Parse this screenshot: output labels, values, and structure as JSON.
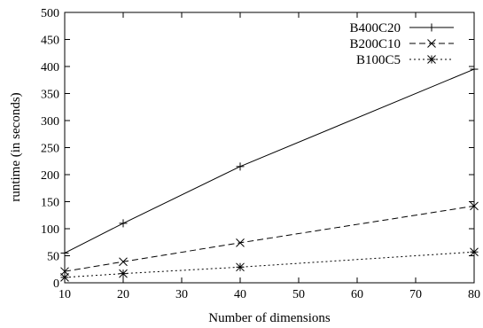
{
  "chart_data": {
    "type": "line",
    "title": "",
    "xlabel": "Number of dimensions",
    "ylabel": "runtime (in seconds)",
    "xlim": [
      10,
      80
    ],
    "ylim": [
      0,
      500
    ],
    "xticks": [
      10,
      20,
      30,
      40,
      50,
      60,
      70,
      80
    ],
    "yticks": [
      0,
      50,
      100,
      150,
      200,
      250,
      300,
      350,
      400,
      450,
      500
    ],
    "grid": false,
    "legend_position": "top-right",
    "series": [
      {
        "name": "B400C20",
        "marker": "plus",
        "dash": "solid",
        "color": "#000000",
        "x": [
          10,
          20,
          40,
          80
        ],
        "y": [
          55,
          110,
          215,
          395
        ]
      },
      {
        "name": "B200C10",
        "marker": "cross",
        "dash": "dashed",
        "color": "#000000",
        "x": [
          10,
          20,
          40,
          80
        ],
        "y": [
          21,
          39,
          74,
          142
        ]
      },
      {
        "name": "B100C5",
        "marker": "star",
        "dash": "dotted",
        "color": "#000000",
        "x": [
          10,
          20,
          40,
          80
        ],
        "y": [
          10,
          17,
          29,
          57
        ]
      }
    ]
  }
}
